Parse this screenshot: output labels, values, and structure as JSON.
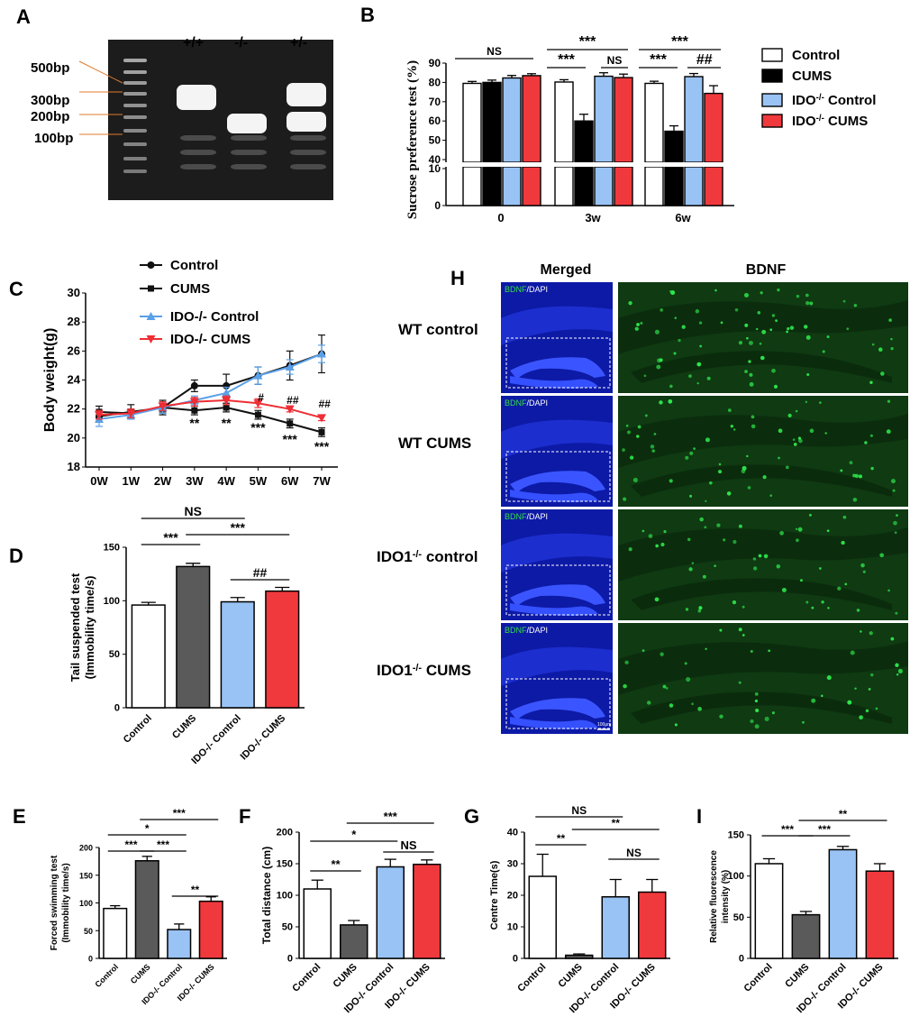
{
  "colors": {
    "control": "#ffffff",
    "cums_black": "#000000",
    "cums_gray": "#5a5a5a",
    "ido_control": "#99c3f5",
    "ido_cums": "#f0393d",
    "line_ido_control": "#5aa0e8",
    "line_ido_cums": "#ee2e35",
    "gel_bg": "#1c1c1c",
    "nucleus_blue": "#1b2ed6",
    "bdnf_green": "#11a62c",
    "field_green": "#0f3a12"
  },
  "panel_labels": {
    "A": "A",
    "B": "B",
    "C": "C",
    "D": "D",
    "E": "E",
    "F": "F",
    "G": "G",
    "H": "H",
    "I": "I"
  },
  "gel": {
    "lanes": [
      "+/+",
      "-/-",
      "+/-"
    ],
    "markers": [
      "500bp",
      "300bp",
      "200bp",
      "100bp"
    ]
  },
  "legend_B": {
    "items": [
      {
        "label": "Control",
        "sup": "",
        "after": "Control",
        "key": "control"
      },
      {
        "label": "CUMS",
        "sup": "",
        "after": "CUMS",
        "key": "cums_black"
      },
      {
        "label": "IDO",
        "sup": "-/-",
        "after": " Control",
        "key": "ido_control"
      },
      {
        "label": "IDO",
        "sup": "-/-",
        "after": " CUMS",
        "key": "ido_cums"
      }
    ]
  },
  "microscopy": {
    "col_titles": {
      "merged": "Merged",
      "bdnf": "BDNF"
    },
    "stain_label": {
      "a": "BDNF",
      "b": "/DAPI"
    },
    "scale_bar": "100μm",
    "rows": [
      {
        "label": "WT control",
        "label_sup": "",
        "label_after": ""
      },
      {
        "label": "WT CUMS",
        "label_sup": "",
        "label_after": ""
      },
      {
        "label": "IDO1",
        "label_sup": "-/-",
        "label_after": " control"
      },
      {
        "label": "IDO1",
        "label_sup": "-/-",
        "label_after": " CUMS"
      }
    ]
  },
  "chart_data": [
    {
      "id": "B",
      "type": "bar",
      "ylabel": "Sucrose preference test (%)",
      "categories": [
        "0",
        "3w",
        "6w"
      ],
      "series": [
        {
          "name": "Control",
          "values": [
            79.5,
            80.2,
            79.5
          ],
          "errors": [
            1.0,
            1.2,
            1.1
          ]
        },
        {
          "name": "CUMS",
          "values": [
            80.0,
            60.0,
            54.7
          ],
          "errors": [
            1.2,
            3.5,
            2.8
          ]
        },
        {
          "name": "IDO-/- Control",
          "values": [
            82.3,
            83.2,
            83.0
          ],
          "errors": [
            1.3,
            1.8,
            1.6
          ]
        },
        {
          "name": "IDO-/- CUMS",
          "values": [
            83.5,
            82.5,
            74.3
          ],
          "errors": [
            1.0,
            1.8,
            4.0
          ]
        }
      ],
      "axis_break": {
        "lower": [
          0,
          10
        ],
        "upper": [
          40,
          90
        ]
      },
      "yticks_upper": [
        40,
        50,
        60,
        70,
        80,
        90
      ],
      "yticks_lower": [
        0,
        10
      ],
      "annotations": [
        "NS",
        "***",
        "***",
        "NS",
        "***",
        "***",
        "##"
      ]
    },
    {
      "id": "C",
      "type": "line",
      "ylabel": "Body weight(g)",
      "x": [
        "0W",
        "1W",
        "2W",
        "3W",
        "4W",
        "5W",
        "6W",
        "7W"
      ],
      "ylim": [
        18,
        30
      ],
      "yticks": [
        18,
        20,
        22,
        24,
        26,
        28,
        30
      ],
      "series": [
        {
          "name": "Control",
          "values": [
            21.5,
            21.8,
            22.1,
            23.6,
            23.6,
            24.3,
            25.0,
            25.8
          ],
          "errors": [
            0.4,
            0.5,
            0.5,
            0.4,
            0.8,
            0.6,
            1.0,
            1.3
          ]
        },
        {
          "name": "CUMS",
          "values": [
            21.8,
            21.7,
            22.1,
            21.9,
            22.1,
            21.6,
            21.0,
            20.4
          ],
          "errors": [
            0.4,
            0.3,
            0.3,
            0.3,
            0.3,
            0.3,
            0.3,
            0.3
          ]
        },
        {
          "name": "IDO-/- Control",
          "values": [
            21.3,
            21.6,
            22.1,
            22.6,
            23.1,
            24.3,
            24.9,
            25.8
          ],
          "errors": [
            0.5,
            0.3,
            0.4,
            0.3,
            0.4,
            0.6,
            0.5,
            0.6
          ]
        },
        {
          "name": "IDO-/- CUMS",
          "values": [
            21.6,
            21.7,
            22.2,
            22.5,
            22.6,
            22.4,
            22.0,
            21.4
          ],
          "errors": [
            0.3,
            0.3,
            0.3,
            0.3,
            0.3,
            0.3,
            0.2,
            0.2
          ]
        }
      ],
      "annotations": [
        {
          "x": "3W",
          "text": "**"
        },
        {
          "x": "4W",
          "text": "**"
        },
        {
          "x": "5W",
          "text": "***"
        },
        {
          "x": "6W",
          "text": "***"
        },
        {
          "x": "7W",
          "text": "***"
        },
        {
          "x": "5W",
          "text": "#"
        },
        {
          "x": "6W",
          "text": "##"
        },
        {
          "x": "7W",
          "text": "##"
        }
      ]
    },
    {
      "id": "D",
      "type": "bar",
      "ylabel": "Tail suspended test (Immobility time/s)",
      "categories": [
        "Control",
        "CUMS",
        "IDO-/- Control",
        "IDO-/- CUMS"
      ],
      "values": [
        96,
        132,
        99,
        109
      ],
      "errors": [
        2.5,
        3.0,
        4.0,
        3.5
      ],
      "ylim": [
        0,
        150
      ],
      "yticks": [
        0,
        50,
        100,
        150
      ],
      "annotations": [
        "NS",
        "***",
        "***",
        "##"
      ]
    },
    {
      "id": "E",
      "type": "bar",
      "ylabel": "Forced swimming test (Immobility time/s)",
      "categories": [
        "Control",
        "CUMS",
        "IDO-/- Control",
        "IDO-/- CUMS"
      ],
      "values": [
        90,
        176,
        52,
        103
      ],
      "errors": [
        5,
        8,
        10,
        8
      ],
      "ylim": [
        0,
        200
      ],
      "yticks": [
        0,
        50,
        100,
        150,
        200
      ],
      "annotations": [
        "***",
        "*",
        "***",
        "***",
        "**"
      ]
    },
    {
      "id": "F",
      "type": "bar",
      "ylabel": "Total distance (cm)",
      "categories": [
        "Control",
        "CUMS",
        "IDO-/- Control",
        "IDO-/- CUMS"
      ],
      "values": [
        110,
        53,
        145,
        149
      ],
      "errors": [
        14,
        7,
        12,
        7
      ],
      "ylim": [
        0,
        200
      ],
      "yticks": [
        0,
        50,
        100,
        150,
        200
      ],
      "annotations": [
        "***",
        "*",
        "**",
        "NS"
      ]
    },
    {
      "id": "G",
      "type": "bar",
      "ylabel": "Centre Time(s)",
      "categories": [
        "Control",
        "CUMS",
        "IDO-/- Control",
        "IDO-/- CUMS"
      ],
      "values": [
        26,
        1,
        19.5,
        21
      ],
      "errors": [
        7,
        0.4,
        5.5,
        4
      ],
      "ylim": [
        0,
        40
      ],
      "yticks": [
        0,
        10,
        20,
        30,
        40
      ],
      "annotations": [
        "NS",
        "**",
        "**",
        "NS"
      ]
    },
    {
      "id": "I",
      "type": "bar",
      "ylabel": "Relative fluorescence intensity (%)",
      "categories": [
        "Control",
        "CUMS",
        "IDO-/- Control",
        "IDO-/- CUMS"
      ],
      "values": [
        115,
        53,
        132,
        106
      ],
      "errors": [
        6,
        4,
        4,
        9
      ],
      "ylim": [
        0,
        150
      ],
      "yticks": [
        0,
        50,
        100,
        150
      ],
      "annotations": [
        "**",
        "***",
        "***"
      ]
    }
  ]
}
